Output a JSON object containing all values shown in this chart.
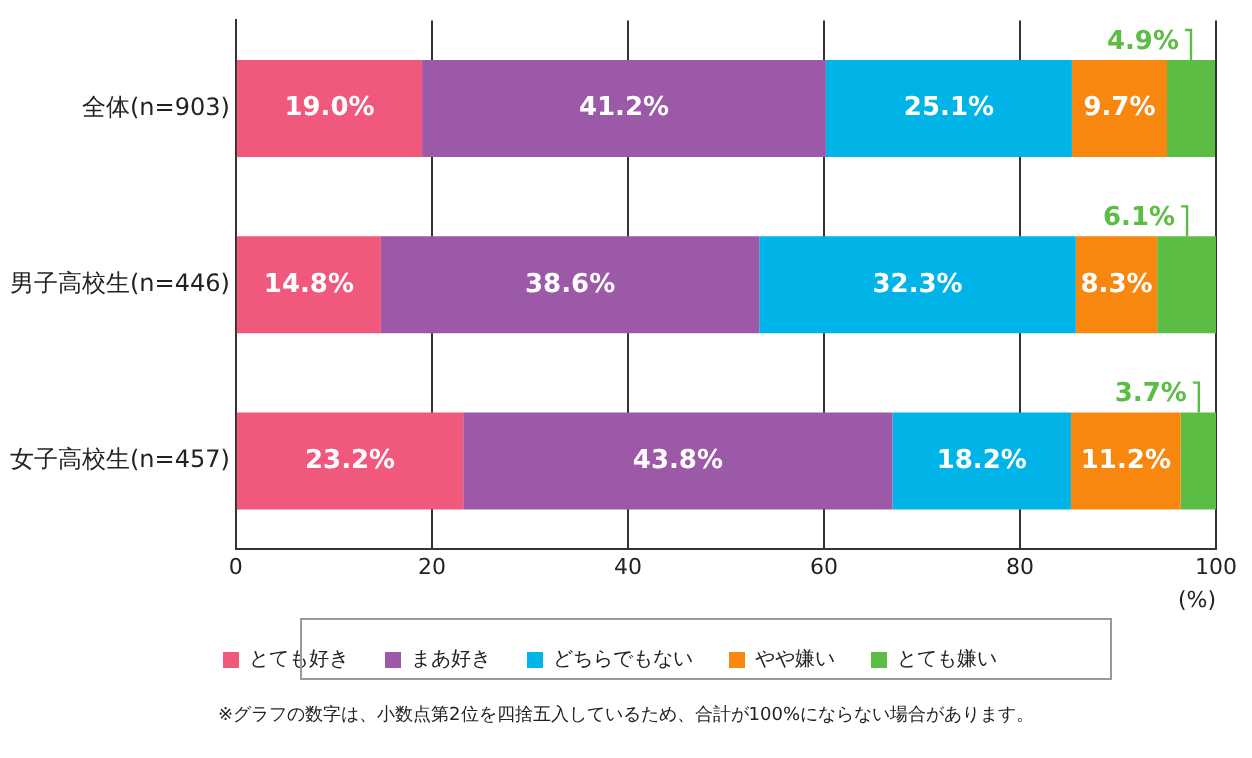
{
  "chart_data": {
    "type": "bar",
    "orientation": "horizontal",
    "stacked": true,
    "categories": [
      "全体(n=903)",
      "男子高校生(n=446)",
      "女子高校生(n=457)"
    ],
    "series": [
      {
        "name": "とても好き",
        "color": "#f0587c",
        "values": [
          19.0,
          14.8,
          23.2
        ],
        "value_labels": [
          "19.0%",
          "14.8%",
          "23.2%"
        ]
      },
      {
        "name": "まあ好き",
        "color": "#9b59a8",
        "values": [
          41.2,
          38.6,
          43.8
        ],
        "value_labels": [
          "41.2%",
          "38.6%",
          "43.8%"
        ]
      },
      {
        "name": "どちらでもない",
        "color": "#00b4e8",
        "values": [
          25.1,
          32.3,
          18.2
        ],
        "value_labels": [
          "25.1%",
          "32.3%",
          "18.2%"
        ]
      },
      {
        "name": "やや嫌い",
        "color": "#f7870f",
        "values": [
          9.7,
          8.3,
          11.2
        ],
        "value_labels": [
          "9.7%",
          "8.3%",
          "11.2%"
        ]
      },
      {
        "name": "とても嫌い",
        "color": "#5cbd45",
        "values": [
          4.9,
          6.1,
          3.7
        ],
        "value_labels": [
          "4.9%",
          "6.1%",
          "3.7%"
        ]
      }
    ],
    "xlim": [
      0,
      100
    ],
    "xticks": [
      0,
      20,
      40,
      60,
      80,
      100
    ],
    "xlabel": "(%)",
    "grid": "x",
    "legend": "bottom",
    "annotations": [
      "※グラフの数字は、小数点第2位を四捨五入しているため、合計が100%にならない場合があります。"
    ]
  }
}
